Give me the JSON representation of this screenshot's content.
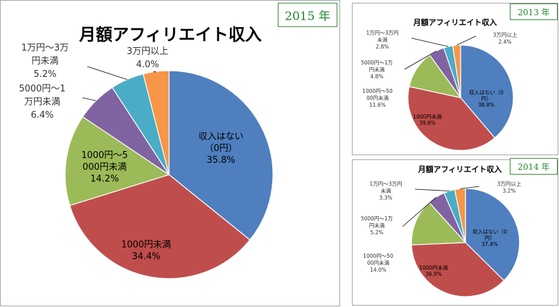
{
  "colors": {
    "none": "#4f7fbf",
    "under1000": "#bf4d4b",
    "y1000to5000": "#9bbb59",
    "y5000to10000": "#8064a2",
    "y10000to30000": "#4aacc6",
    "over30000": "#f79646",
    "badge_text": "#1e8a2e"
  },
  "chart_data": [
    {
      "type": "pie",
      "year_badge": "2015 年",
      "title": "月額アフィリエイト収入",
      "slices": [
        {
          "label_lines": [
            "収入はない",
            "（0円）"
          ],
          "value": 35.8,
          "value_text": "35.8%",
          "color_key": "none"
        },
        {
          "label_lines": [
            "1000円未満"
          ],
          "value": 34.4,
          "value_text": "34.4%",
          "color_key": "under1000"
        },
        {
          "label_lines": [
            "1000円～5",
            "000円未満"
          ],
          "value": 14.2,
          "value_text": "14.2%",
          "color_key": "y1000to5000"
        },
        {
          "label_lines": [
            "5000円～1",
            "万円未満"
          ],
          "value": 6.4,
          "value_text": "6.4%",
          "color_key": "y5000to10000"
        },
        {
          "label_lines": [
            "1万円～3万",
            "円未満"
          ],
          "value": 5.2,
          "value_text": "5.2%",
          "color_key": "y10000to30000"
        },
        {
          "label_lines": [
            "3万円以上"
          ],
          "value": 4.0,
          "value_text": "4.0%",
          "color_key": "over30000"
        }
      ]
    },
    {
      "type": "pie",
      "year_badge": "2013 年",
      "title": "月額アフィリエイト収入",
      "slices": [
        {
          "label_lines": [
            "収入はない（0",
            "円）"
          ],
          "value": 38.8,
          "value_text": "38.8%",
          "color_key": "none"
        },
        {
          "label_lines": [
            "1000円未満"
          ],
          "value": 39.6,
          "value_text": "39.6%",
          "color_key": "under1000"
        },
        {
          "label_lines": [
            "1000円～50",
            "00円未満"
          ],
          "value": 11.6,
          "value_text": "11.6%",
          "color_key": "y1000to5000"
        },
        {
          "label_lines": [
            "5000円～1万",
            "円未満"
          ],
          "value": 4.8,
          "value_text": "4.8%",
          "color_key": "y5000to10000"
        },
        {
          "label_lines": [
            "1万円～3万円",
            "未満"
          ],
          "value": 2.8,
          "value_text": "2.8%",
          "color_key": "y10000to30000"
        },
        {
          "label_lines": [
            "3万円以上"
          ],
          "value": 2.4,
          "value_text": "2.4%",
          "color_key": "over30000"
        }
      ]
    },
    {
      "type": "pie",
      "year_badge": "2014 年",
      "title": "月額アフィリエイト収入",
      "slices": [
        {
          "label_lines": [
            "収入はない（0",
            "円）"
          ],
          "value": 37.4,
          "value_text": "37.4%",
          "color_key": "none"
        },
        {
          "label_lines": [
            "1000円未満"
          ],
          "value": 36.9,
          "value_text": "36.9%",
          "color_key": "under1000"
        },
        {
          "label_lines": [
            "1000円～50",
            "00円未満"
          ],
          "value": 14.0,
          "value_text": "14.0%",
          "color_key": "y1000to5000"
        },
        {
          "label_lines": [
            "5000円～1万",
            "円未満"
          ],
          "value": 5.2,
          "value_text": "5.2%",
          "color_key": "y5000to10000"
        },
        {
          "label_lines": [
            "1万円～3万円",
            "未満"
          ],
          "value": 3.3,
          "value_text": "3.3%",
          "color_key": "y10000to30000"
        },
        {
          "label_lines": [
            "3万円以上"
          ],
          "value": 3.2,
          "value_text": "3.2%",
          "color_key": "over30000"
        }
      ]
    }
  ]
}
